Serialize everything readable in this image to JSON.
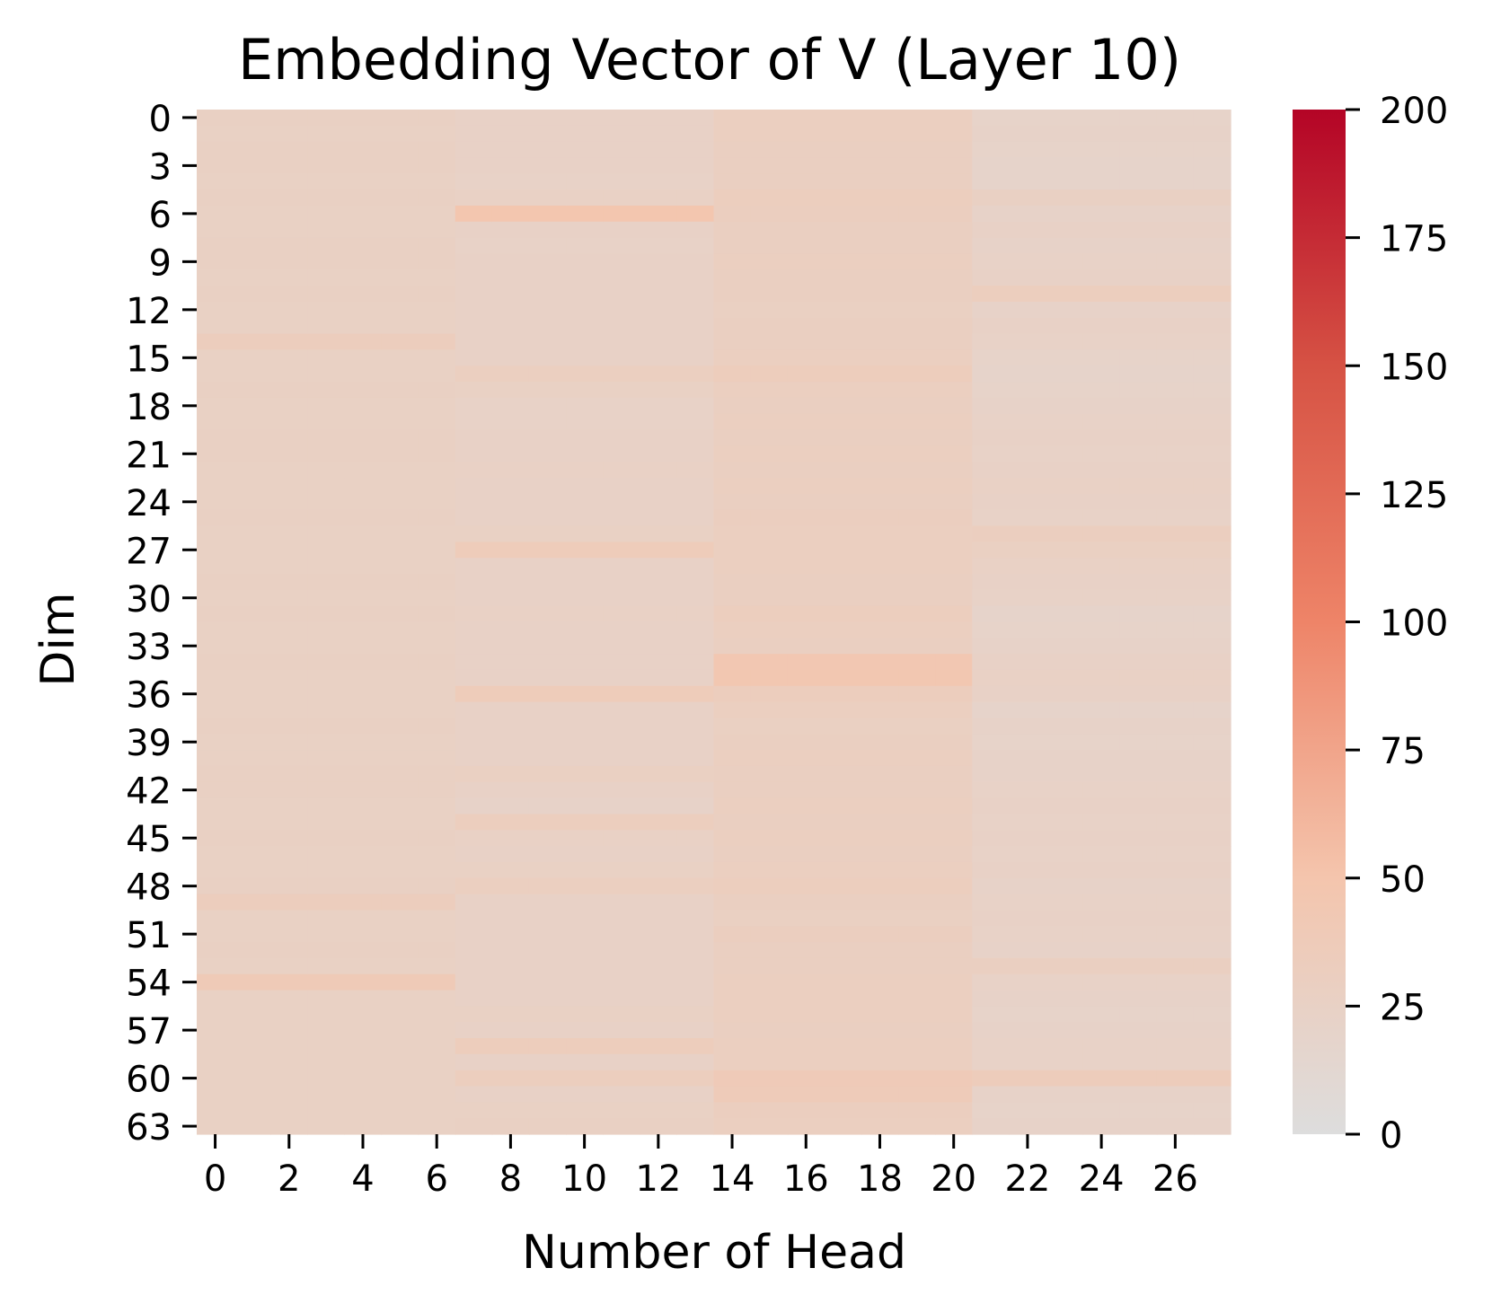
{
  "chart_data": {
    "type": "heatmap",
    "title": "Embedding Vector of V (Layer 10)",
    "xlabel": "Number of Head",
    "ylabel": "Dim",
    "x_tick_labels": [
      "0",
      "2",
      "4",
      "6",
      "8",
      "10",
      "12",
      "14",
      "16",
      "18",
      "20",
      "22",
      "24",
      "26"
    ],
    "y_tick_labels": [
      "0",
      "3",
      "6",
      "9",
      "12",
      "15",
      "18",
      "21",
      "24",
      "27",
      "30",
      "33",
      "36",
      "39",
      "42",
      "45",
      "48",
      "51",
      "54",
      "57",
      "60",
      "63"
    ],
    "n_heads": 28,
    "n_dims": 64,
    "head_groups": [
      [
        0,
        6
      ],
      [
        7,
        13
      ],
      [
        14,
        20
      ],
      [
        21,
        27
      ]
    ],
    "group_values": [
      [
        27,
        26,
        27,
        27,
        26,
        27,
        26,
        26,
        27,
        27,
        26,
        27,
        26,
        26,
        33,
        26,
        26,
        27,
        26,
        26,
        27,
        27,
        26,
        26,
        26,
        27,
        26,
        26,
        26,
        27,
        26,
        27,
        26,
        26,
        27,
        26,
        26,
        26,
        27,
        26,
        26,
        27,
        27,
        26,
        26,
        27,
        26,
        26,
        27,
        33,
        26,
        26,
        27,
        26,
        40,
        26,
        26,
        26,
        26,
        26,
        26,
        26,
        26,
        26
      ],
      [
        24,
        24,
        24,
        24,
        23,
        25,
        48,
        24,
        23,
        24,
        24,
        24,
        24,
        24,
        24,
        24,
        30,
        26,
        23,
        23,
        24,
        24,
        25,
        24,
        24,
        24,
        26,
        36,
        24,
        24,
        24,
        25,
        24,
        24,
        24,
        24,
        36,
        24,
        24,
        24,
        24,
        28,
        24,
        22,
        32,
        25,
        24,
        26,
        30,
        24,
        24,
        24,
        24,
        24,
        24,
        24,
        26,
        24,
        34,
        24,
        32,
        24,
        26,
        27
      ],
      [
        30,
        30,
        29,
        29,
        29,
        32,
        31,
        29,
        29,
        30,
        29,
        29,
        28,
        29,
        29,
        30,
        34,
        30,
        29,
        30,
        29,
        30,
        29,
        30,
        29,
        31,
        30,
        30,
        30,
        29,
        29,
        32,
        30,
        29,
        45,
        46,
        33,
        30,
        28,
        29,
        30,
        29,
        29,
        30,
        29,
        30,
        29,
        30,
        32,
        29,
        28,
        31,
        29,
        29,
        30,
        30,
        30,
        29,
        30,
        30,
        39,
        37,
        31,
        30
      ],
      [
        21,
        22,
        21,
        20,
        20,
        27,
        22,
        24,
        22,
        23,
        24,
        32,
        22,
        24,
        23,
        21,
        20,
        21,
        22,
        23,
        24,
        23,
        24,
        25,
        24,
        23,
        31,
        28,
        25,
        24,
        23,
        20,
        21,
        22,
        24,
        25,
        24,
        20,
        22,
        21,
        22,
        22,
        23,
        24,
        23,
        24,
        23,
        24,
        22,
        23,
        24,
        23,
        22,
        29,
        23,
        22,
        21,
        22,
        23,
        23,
        35,
        22,
        21,
        22
      ]
    ],
    "colorbar": {
      "min": 0,
      "max": 200,
      "ticks": [
        "0",
        "25",
        "50",
        "75",
        "100",
        "125",
        "150",
        "175",
        "200"
      ],
      "colormap": "coolwarm-upper",
      "stops": [
        {
          "v": 0,
          "color": "#dddddd"
        },
        {
          "v": 50,
          "color": "#f4c5ad"
        },
        {
          "v": 100,
          "color": "#ee8468"
        },
        {
          "v": 150,
          "color": "#d65244"
        },
        {
          "v": 200,
          "color": "#b40426"
        }
      ]
    }
  }
}
